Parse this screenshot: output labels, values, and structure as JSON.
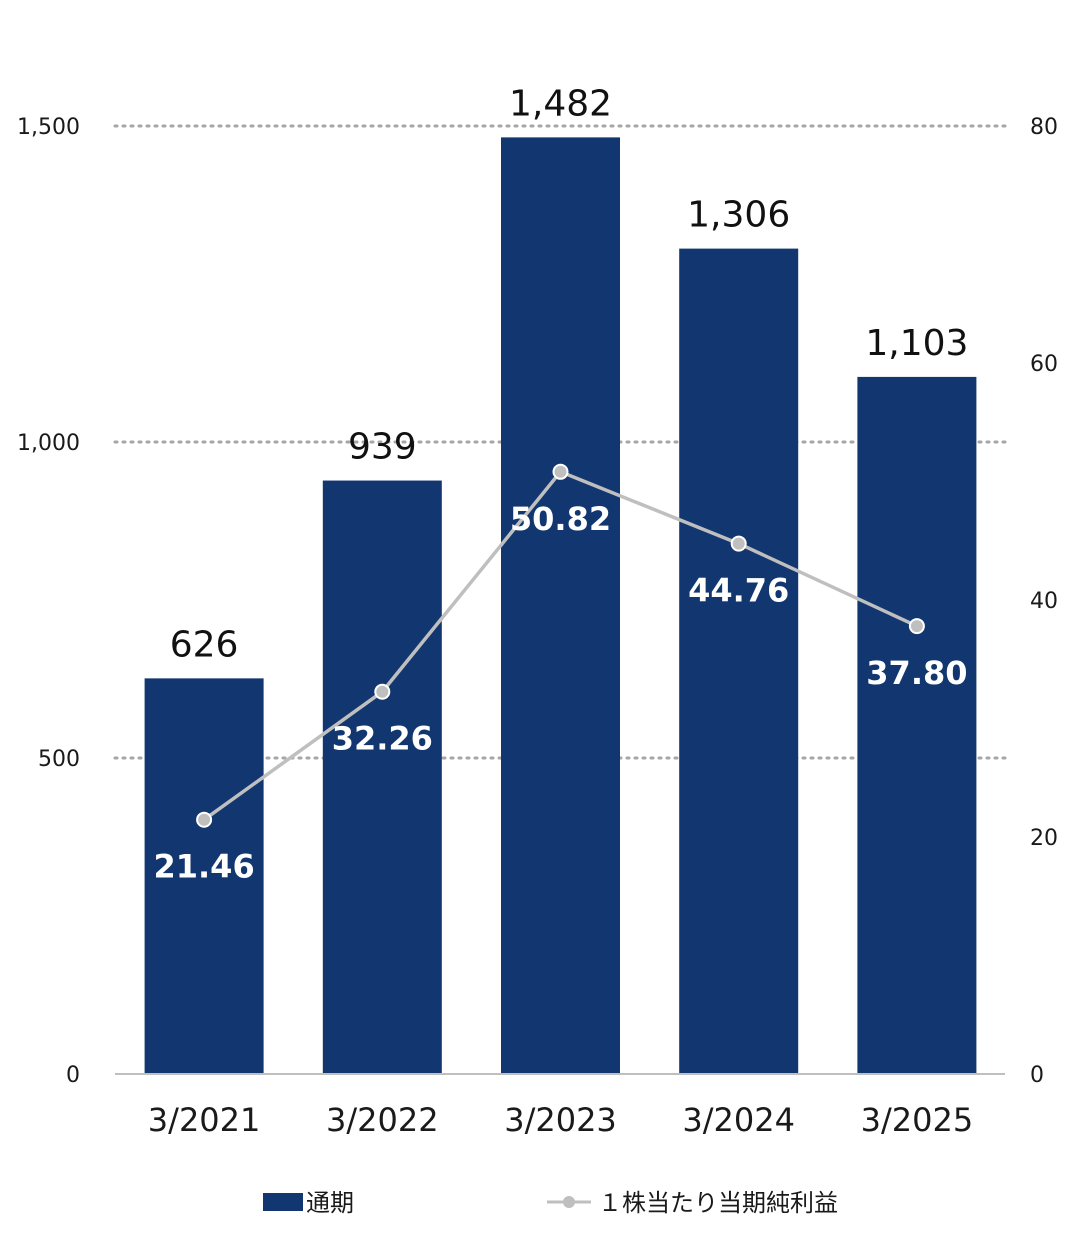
{
  "chart_data": {
    "type": "bar+line",
    "categories": [
      "3/2021",
      "3/2022",
      "3/2023",
      "3/2024",
      "3/2025"
    ],
    "series": [
      {
        "name": "通期",
        "type": "bar",
        "axis": "left",
        "values": [
          626,
          939,
          1482,
          1306,
          1103
        ],
        "labels": [
          "626",
          "939",
          "1,482",
          "1,306",
          "1,103"
        ],
        "color": "#12366f"
      },
      {
        "name": "１株当たり当期純利益",
        "type": "line",
        "axis": "right",
        "values": [
          21.46,
          32.26,
          50.82,
          44.76,
          37.8
        ],
        "labels": [
          "21.46",
          "32.26",
          "50.82",
          "44.76",
          "37.80"
        ],
        "color": "#bfbfbf"
      }
    ],
    "left_axis": {
      "min": 0,
      "max": 1500,
      "ticks": [
        0,
        500,
        1000,
        1500
      ],
      "tick_labels": [
        "0",
        "500",
        "1,000",
        "1,500"
      ]
    },
    "right_axis": {
      "min": 0,
      "max": 80,
      "ticks": [
        0,
        20,
        40,
        60,
        80
      ],
      "tick_labels": [
        "0",
        "20",
        "40",
        "60",
        "80"
      ]
    },
    "grid": "dotted horizontal",
    "legend_position": "bottom"
  }
}
